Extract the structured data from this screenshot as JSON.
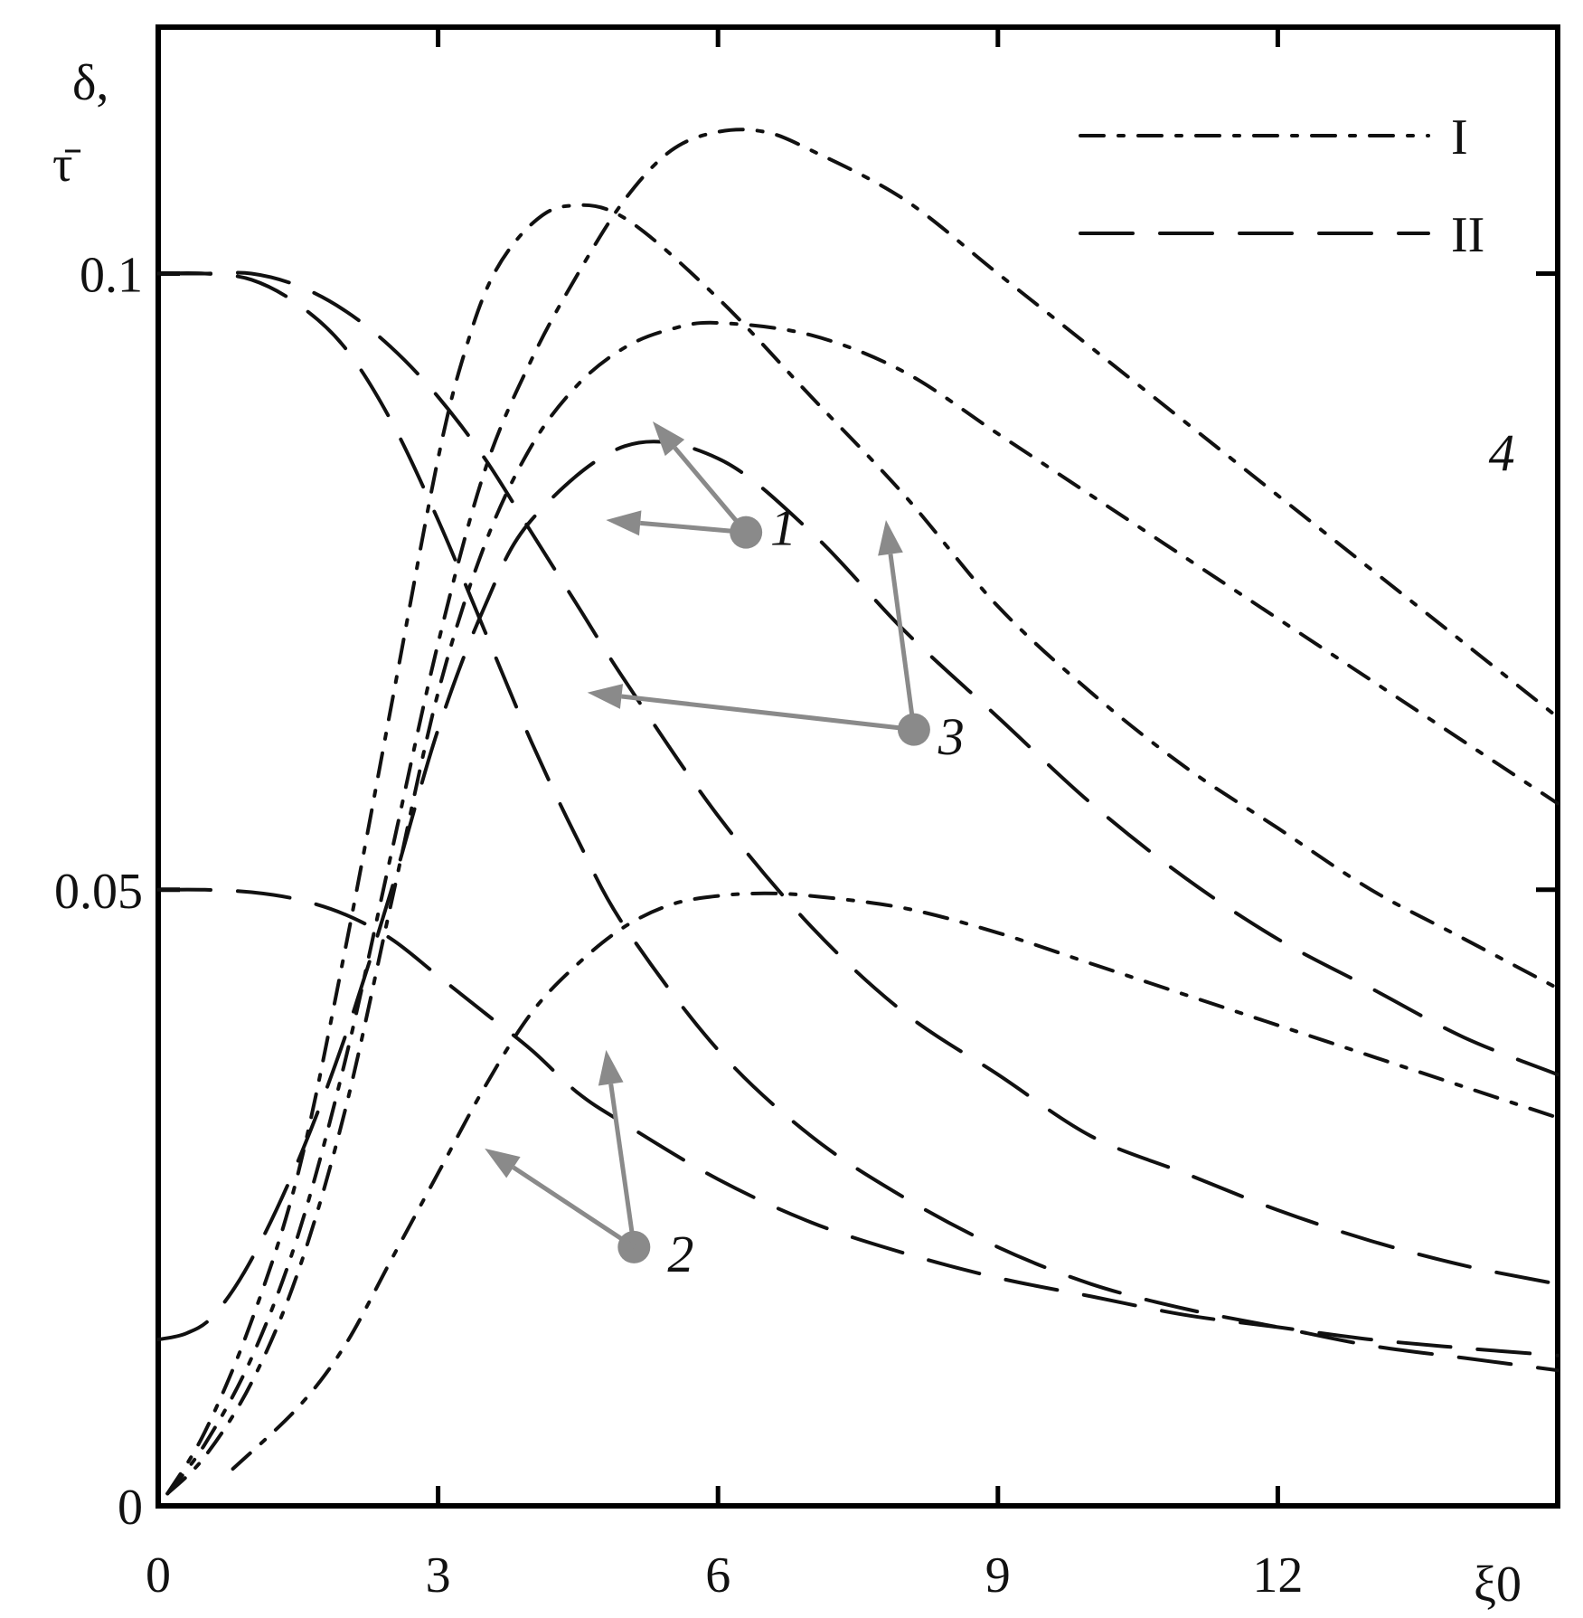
{
  "chart_data": {
    "type": "line",
    "title": "",
    "xlabel": "ξ0",
    "ylabel_top": "δ,",
    "ylabel_bottom": "τ̄",
    "xlim": [
      0,
      15
    ],
    "ylim": [
      0,
      0.12
    ],
    "x_ticks": [
      0,
      3,
      6,
      9,
      12
    ],
    "x_tick_labels": [
      "0",
      "3",
      "6",
      "9",
      "12"
    ],
    "y_ticks": [
      0,
      0.05,
      0.1
    ],
    "y_tick_labels": [
      "0",
      "0.05",
      "0.1"
    ],
    "legend": {
      "placement": "top-right",
      "entries": [
        {
          "label": "I",
          "style": "dash-dot"
        },
        {
          "label": "II",
          "style": "long-dash"
        }
      ]
    },
    "series_labels": [
      {
        "text": "1",
        "x": 6.7,
        "y": 0.078
      },
      {
        "text": "2",
        "x": 5.6,
        "y": 0.019
      },
      {
        "text": "3",
        "x": 8.5,
        "y": 0.061
      },
      {
        "text": "4",
        "x": 14.4,
        "y": 0.084
      }
    ],
    "pointers": [
      {
        "from": [
          6.3,
          0.079
        ],
        "to": [
          5.3,
          0.088
        ]
      },
      {
        "from": [
          6.3,
          0.079
        ],
        "to": [
          4.8,
          0.08
        ]
      },
      {
        "from": [
          5.1,
          0.021
        ],
        "to": [
          4.8,
          0.037
        ]
      },
      {
        "from": [
          5.1,
          0.021
        ],
        "to": [
          3.5,
          0.029
        ]
      },
      {
        "from": [
          8.1,
          0.063
        ],
        "to": [
          7.8,
          0.08
        ]
      },
      {
        "from": [
          8.1,
          0.063
        ],
        "to": [
          4.6,
          0.066
        ]
      }
    ],
    "series": [
      {
        "group": "I",
        "x": [
          0.1,
          0.5,
          1,
          1.5,
          2,
          2.5,
          3,
          3.3,
          3.6,
          4,
          4.4,
          5,
          6,
          7,
          8,
          9,
          10,
          11,
          12,
          13,
          14,
          15
        ],
        "y": [
          0.001,
          0.006,
          0.015,
          0.027,
          0.045,
          0.065,
          0.085,
          0.094,
          0.1,
          0.104,
          0.1055,
          0.1045,
          0.098,
          0.09,
          0.082,
          0.073,
          0.066,
          0.06,
          0.055,
          0.05,
          0.046,
          0.042
        ]
      },
      {
        "group": "I",
        "x": [
          0.1,
          0.5,
          1,
          1.5,
          2,
          2.5,
          3,
          3.5,
          4,
          4.5,
          5,
          5.5,
          6,
          6.5,
          7,
          8,
          9,
          10,
          11,
          12,
          13,
          14,
          15
        ],
        "y": [
          0.001,
          0.005,
          0.012,
          0.022,
          0.036,
          0.053,
          0.07,
          0.084,
          0.093,
          0.1,
          0.106,
          0.11,
          0.1115,
          0.1115,
          0.11,
          0.106,
          0.1,
          0.094,
          0.088,
          0.082,
          0.076,
          0.07,
          0.064
        ]
      },
      {
        "group": "I",
        "x": [
          0.1,
          0.5,
          1,
          1.5,
          2,
          2.5,
          3,
          3.5,
          4,
          4.5,
          5,
          5.5,
          6,
          7,
          8,
          9,
          10,
          11,
          12,
          13,
          14,
          15
        ],
        "y": [
          0.001,
          0.004,
          0.01,
          0.019,
          0.032,
          0.049,
          0.066,
          0.078,
          0.086,
          0.091,
          0.094,
          0.0955,
          0.096,
          0.095,
          0.092,
          0.087,
          0.082,
          0.077,
          0.072,
          0.067,
          0.062,
          0.057
        ]
      },
      {
        "group": "I",
        "x": [
          0.8,
          1.5,
          2,
          2.5,
          3,
          3.5,
          4,
          4.5,
          5,
          5.5,
          6,
          6.5,
          7,
          8,
          9,
          10,
          11,
          12,
          13,
          14,
          15
        ],
        "y": [
          0.003,
          0.008,
          0.013,
          0.02,
          0.027,
          0.034,
          0.04,
          0.044,
          0.047,
          0.0488,
          0.0495,
          0.0497,
          0.0495,
          0.0485,
          0.0465,
          0.044,
          0.0415,
          0.039,
          0.0365,
          0.034,
          0.0315
        ]
      },
      {
        "group": "II",
        "x": [
          0,
          0.5,
          1,
          1.5,
          2,
          2.5,
          3,
          3.5,
          4,
          4.5,
          5,
          6,
          7,
          8,
          9,
          10,
          11,
          12,
          13,
          14,
          15
        ],
        "y": [
          0.1,
          0.1,
          0.0995,
          0.0975,
          0.094,
          0.088,
          0.08,
          0.071,
          0.062,
          0.054,
          0.047,
          0.037,
          0.03,
          0.025,
          0.021,
          0.018,
          0.016,
          0.0145,
          0.013,
          0.012,
          0.011
        ]
      },
      {
        "group": "II",
        "x": [
          0,
          0.5,
          1,
          1.5,
          2,
          2.5,
          3,
          3.5,
          4,
          4.5,
          5,
          6,
          7,
          8,
          9,
          10,
          11,
          12,
          13,
          14,
          15
        ],
        "y": [
          0.1,
          0.1,
          0.1,
          0.099,
          0.097,
          0.094,
          0.09,
          0.085,
          0.079,
          0.073,
          0.067,
          0.056,
          0.047,
          0.04,
          0.035,
          0.03,
          0.027,
          0.024,
          0.0215,
          0.0195,
          0.018
        ]
      },
      {
        "group": "II",
        "x": [
          0,
          0.5,
          1,
          1.5,
          2,
          2.5,
          3,
          3.5,
          4,
          4.5,
          5,
          6,
          7,
          8,
          9,
          10,
          11,
          12,
          13,
          14,
          15
        ],
        "y": [
          0.05,
          0.05,
          0.0498,
          0.0492,
          0.048,
          0.046,
          0.043,
          0.04,
          0.037,
          0.0335,
          0.031,
          0.0265,
          0.023,
          0.0205,
          0.0185,
          0.017,
          0.0155,
          0.0145,
          0.0135,
          0.0128,
          0.0122
        ]
      },
      {
        "group": "II",
        "x": [
          0,
          0.3,
          0.6,
          1,
          1.5,
          2,
          2.5,
          3,
          3.5,
          4,
          5,
          6,
          7,
          8,
          9,
          10,
          11,
          12,
          13,
          14,
          15
        ],
        "y": [
          0.0135,
          0.014,
          0.0155,
          0.02,
          0.028,
          0.038,
          0.05,
          0.063,
          0.073,
          0.08,
          0.086,
          0.085,
          0.079,
          0.071,
          0.064,
          0.057,
          0.051,
          0.046,
          0.042,
          0.038,
          0.035
        ]
      }
    ]
  }
}
